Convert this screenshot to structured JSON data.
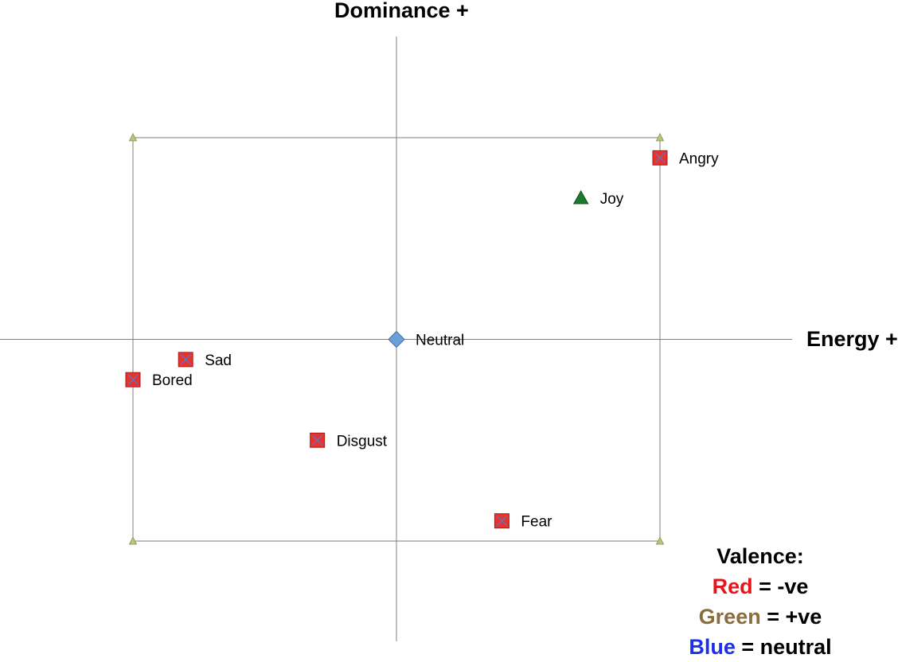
{
  "chart_data": {
    "type": "scatter",
    "xlabel": "Energy +",
    "ylabel": "Dominance +",
    "xlim": [
      -1,
      1
    ],
    "ylim": [
      -1,
      1
    ],
    "grid": false,
    "corner_markers": [
      {
        "x": -1,
        "y": 1
      },
      {
        "x": 1,
        "y": 1
      },
      {
        "x": -1,
        "y": -1
      },
      {
        "x": 1,
        "y": -1
      }
    ],
    "points": [
      {
        "label": "Angry",
        "x": 1.0,
        "y": 0.9,
        "valence": "negative",
        "marker": "square",
        "color": "#e8322c"
      },
      {
        "label": "Joy",
        "x": 0.7,
        "y": 0.7,
        "valence": "positive",
        "marker": "triangle",
        "color": "#1a7a2e"
      },
      {
        "label": "Neutral",
        "x": 0.0,
        "y": 0.0,
        "valence": "neutral",
        "marker": "diamond",
        "color": "#6a9fd8"
      },
      {
        "label": "Sad",
        "x": -0.8,
        "y": -0.1,
        "valence": "negative",
        "marker": "square",
        "color": "#e8322c"
      },
      {
        "label": "Bored",
        "x": -1.0,
        "y": -0.2,
        "valence": "negative",
        "marker": "square",
        "color": "#e8322c"
      },
      {
        "label": "Disgust",
        "x": -0.3,
        "y": -0.5,
        "valence": "negative",
        "marker": "square",
        "color": "#e8322c"
      },
      {
        "label": "Fear",
        "x": 0.4,
        "y": -0.9,
        "valence": "negative",
        "marker": "square",
        "color": "#e8322c"
      }
    ],
    "legend": {
      "title": "Valence:",
      "entries": [
        {
          "name": "Red",
          "meaning": "= -ve",
          "color": "#e8141b"
        },
        {
          "name": "Green",
          "meaning": "= +ve",
          "color": "#8b6c3d"
        },
        {
          "name": "Blue",
          "meaning": "= neutral",
          "color": "#1c31e6"
        }
      ],
      "placement": "bottom-right"
    }
  }
}
